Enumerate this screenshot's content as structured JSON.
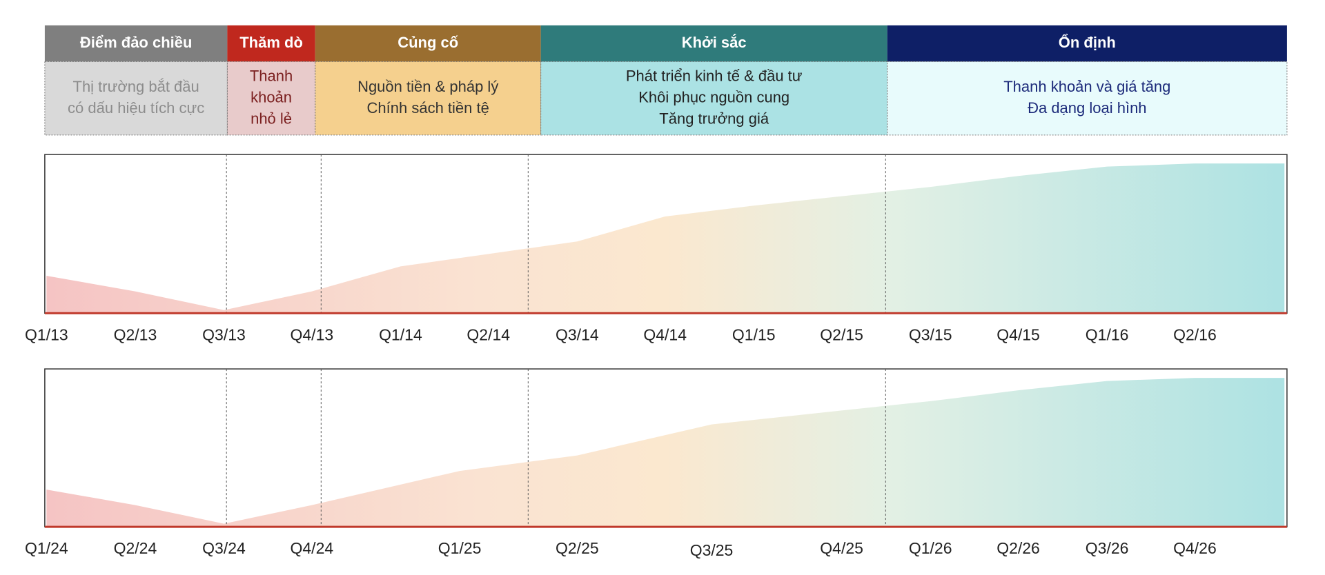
{
  "phases": [
    {
      "name": "Điểm đảo chiều",
      "lines": [
        "Thị trường bắt đầu",
        "có dấu hiệu tích cực"
      ],
      "header_color": "#7f7f7f",
      "body_color": "#d9d9d9",
      "text_color": "#8c8c8c"
    },
    {
      "name": "Thăm dò",
      "lines": [
        "Thanh",
        "khoản",
        "nhỏ lẻ"
      ],
      "header_color": "#c0281e",
      "body_color": "#e8cbcb",
      "text_color": "#7a1e1e"
    },
    {
      "name": "Củng cố",
      "lines": [
        "Nguồn tiền & pháp lý",
        "Chính sách tiền tệ"
      ],
      "header_color": "#9a6e30",
      "body_color": "#f5d08e",
      "text_color": "#333333"
    },
    {
      "name": "Khởi sắc",
      "lines": [
        "Phát triển kinh tế & đầu tư",
        "Khôi phục nguồn cung",
        "Tăng trưởng giá"
      ],
      "header_color": "#2f7b7b",
      "body_color": "#abe2e4",
      "text_color": "#222222"
    },
    {
      "name": "Ổn định",
      "lines": [
        "Thanh khoản và giá tăng",
        "Đa dạng loại hình"
      ],
      "header_color": "#0e1f66",
      "body_color": "#e8fbfc",
      "text_color": "#1c2a7a"
    }
  ],
  "chart_data": [
    {
      "type": "area",
      "categories": [
        "Q1/13",
        "Q2/13",
        "Q3/13",
        "Q4/13",
        "Q1/14",
        "Q2/14",
        "Q3/14",
        "Q4/14",
        "Q1/15",
        "Q2/15",
        "Q3/15",
        "Q4/15",
        "Q1/16",
        "Q2/16",
        null
      ],
      "values": [
        24,
        14,
        2,
        14,
        30,
        38,
        46,
        62,
        69,
        75,
        81,
        88,
        94,
        96,
        96
      ],
      "ylim": [
        0,
        100
      ],
      "baseline_color": "#c0392b"
    },
    {
      "type": "area",
      "categories": [
        "Q1/24",
        "Q2/24",
        "Q3/24",
        "Q4/24",
        "Q1/25",
        "Q2/25",
        "Q3/25",
        "Q4/25",
        "Q1/26",
        "Q2/26",
        "Q3/26",
        "Q4/26",
        null
      ],
      "values": [
        24,
        14,
        2,
        14,
        36,
        46,
        66,
        75,
        81,
        88,
        94,
        96,
        96
      ],
      "ylim": [
        0,
        100
      ],
      "baseline_color": "#c0392b"
    }
  ]
}
